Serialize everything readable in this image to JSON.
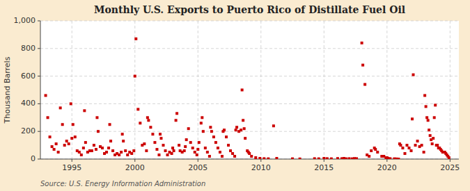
{
  "chart_data": {
    "type": "scatter",
    "title": "Monthly U.S. Exports to Puerto Rico of Distillate Fuel Oil",
    "y_label": "Thousand Barrels",
    "source": "Source: U.S. Energy Information Administration",
    "color": "#cc0000",
    "marker": "square",
    "grid": true,
    "xlim": [
      1992.5,
      2025.7
    ],
    "ylim": [
      0,
      1000
    ],
    "xticks": [
      1995,
      2000,
      2005,
      2010,
      2015,
      2020,
      2025
    ],
    "yticks": [
      0,
      200,
      400,
      600,
      800,
      {
        "value": 1000,
        "label": "1,000"
      }
    ],
    "x": [
      1992.917,
      1993.083,
      1993.25,
      1993.417,
      1993.583,
      1993.75,
      1993.917,
      1994.083,
      1994.25,
      1994.417,
      1994.583,
      1994.75,
      1994.917,
      1995.0,
      1995.083,
      1995.25,
      1995.417,
      1995.583,
      1995.75,
      1995.917,
      1996.0,
      1996.083,
      1996.25,
      1996.417,
      1996.583,
      1996.75,
      1996.917,
      1997.0,
      1997.083,
      1997.25,
      1997.417,
      1997.583,
      1997.75,
      1997.917,
      1998.0,
      1998.083,
      1998.25,
      1998.417,
      1998.583,
      1998.75,
      1998.917,
      1999.0,
      1999.083,
      1999.25,
      1999.417,
      1999.583,
      1999.75,
      1999.917,
      2000.0,
      2000.083,
      2000.25,
      2000.417,
      2000.583,
      2000.75,
      2000.917,
      2001.0,
      2001.083,
      2001.25,
      2001.417,
      2001.583,
      2001.75,
      2001.917,
      2002.0,
      2002.083,
      2002.25,
      2002.417,
      2002.583,
      2002.75,
      2002.917,
      2003.0,
      2003.083,
      2003.25,
      2003.333,
      2003.5,
      2003.583,
      2003.75,
      2003.917,
      2004.0,
      2004.083,
      2004.25,
      2004.417,
      2004.583,
      2004.75,
      2004.917,
      2005.0,
      2005.083,
      2005.25,
      2005.333,
      2005.417,
      2005.583,
      2005.75,
      2005.917,
      2006.0,
      2006.083,
      2006.25,
      2006.417,
      2006.583,
      2006.75,
      2006.917,
      2007.0,
      2007.083,
      2007.25,
      2007.417,
      2007.583,
      2007.75,
      2007.917,
      2008.0,
      2008.083,
      2008.25,
      2008.417,
      2008.5,
      2008.583,
      2008.667,
      2008.75,
      2008.917,
      2009.0,
      2009.083,
      2009.25,
      2009.583,
      2009.917,
      2010.25,
      2010.583,
      2011.0,
      2011.25,
      2012.5,
      2013.083,
      2014.25,
      2014.583,
      2015.0,
      2015.25,
      2015.583,
      2016.083,
      2016.417,
      2016.583,
      2016.75,
      2017.0,
      2017.25,
      2017.417,
      2017.583,
      2018.0,
      2018.083,
      2018.25,
      2018.417,
      2018.583,
      2018.75,
      2019.0,
      2019.083,
      2019.25,
      2019.583,
      2019.75,
      2019.917,
      2020.0,
      2020.083,
      2020.25,
      2020.583,
      2020.75,
      2020.917,
      2021.0,
      2021.083,
      2021.25,
      2021.417,
      2021.583,
      2021.75,
      2021.917,
      2022.0,
      2022.083,
      2022.25,
      2022.417,
      2022.583,
      2022.75,
      2022.917,
      2023.0,
      2023.083,
      2023.167,
      2023.25,
      2023.333,
      2023.417,
      2023.5,
      2023.583,
      2023.667,
      2023.75,
      2023.833,
      2023.917,
      2024.0,
      2024.083,
      2024.167,
      2024.25,
      2024.333,
      2024.417,
      2024.5,
      2024.583,
      2024.667,
      2024.75,
      2024.833,
      2024.917
    ],
    "values": [
      460,
      300,
      160,
      90,
      70,
      110,
      50,
      370,
      250,
      100,
      130,
      110,
      400,
      150,
      250,
      160,
      60,
      50,
      30,
      80,
      350,
      120,
      50,
      60,
      60,
      100,
      70,
      300,
      200,
      90,
      80,
      40,
      50,
      80,
      250,
      130,
      60,
      30,
      40,
      30,
      50,
      180,
      130,
      60,
      30,
      50,
      40,
      60,
      600,
      870,
      360,
      260,
      100,
      110,
      60,
      300,
      280,
      230,
      180,
      120,
      70,
      30,
      180,
      150,
      100,
      60,
      30,
      50,
      40,
      80,
      60,
      280,
      330,
      100,
      60,
      50,
      60,
      90,
      140,
      220,
      120,
      80,
      50,
      30,
      70,
      120,
      260,
      300,
      200,
      80,
      50,
      20,
      230,
      200,
      160,
      120,
      80,
      50,
      20,
      200,
      210,
      160,
      100,
      60,
      40,
      20,
      210,
      230,
      200,
      210,
      500,
      280,
      220,
      150,
      60,
      50,
      40,
      20,
      10,
      5,
      3,
      2,
      240,
      5,
      2,
      1,
      3,
      2,
      5,
      3,
      2,
      4,
      3,
      5,
      2,
      3,
      2,
      4,
      3,
      840,
      680,
      540,
      30,
      20,
      60,
      80,
      70,
      50,
      20,
      20,
      10,
      10,
      5,
      3,
      2,
      1,
      0,
      110,
      100,
      80,
      40,
      100,
      80,
      60,
      290,
      610,
      100,
      130,
      90,
      100,
      50,
      460,
      380,
      300,
      280,
      210,
      170,
      140,
      110,
      150,
      300,
      390,
      100,
      100,
      80,
      80,
      70,
      60,
      50,
      50,
      50,
      40,
      30,
      20,
      10
    ]
  }
}
